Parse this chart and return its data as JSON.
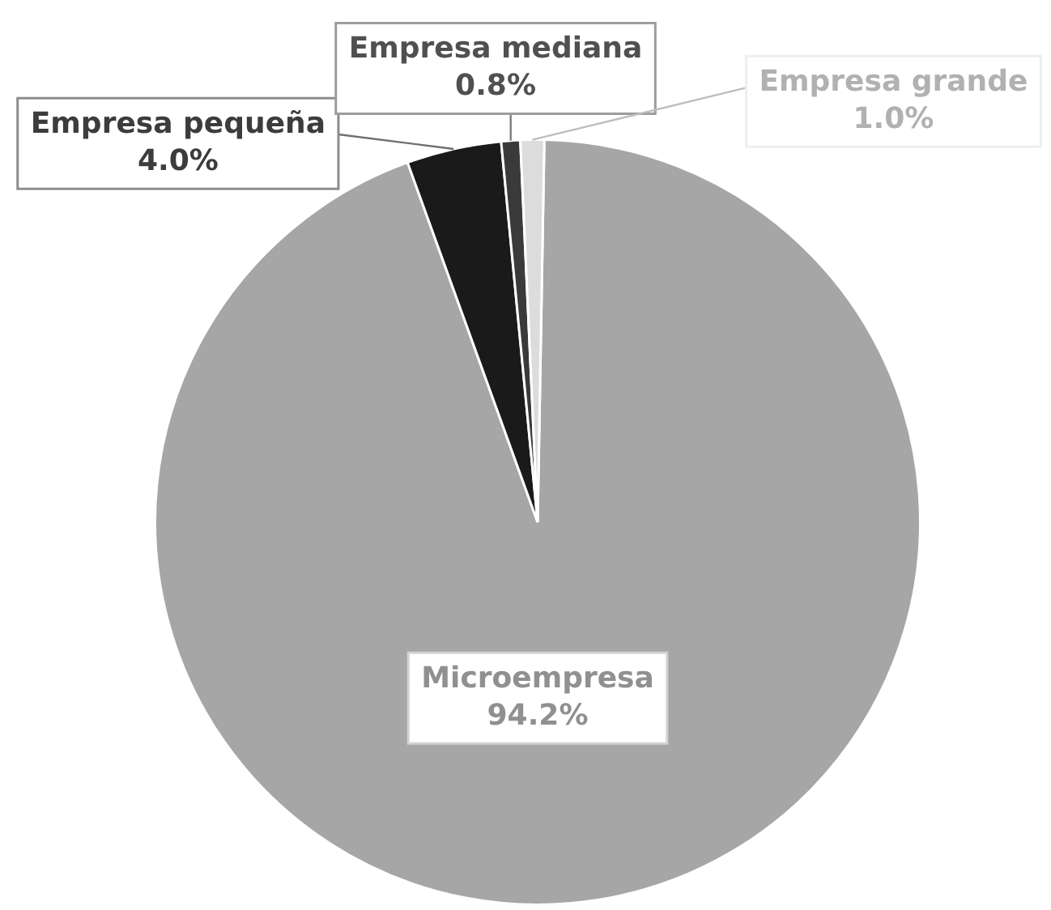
{
  "chart_data": {
    "type": "pie",
    "categories": [
      "Microempresa",
      "Empresa pequeña",
      "Empresa mediana",
      "Empresa grande"
    ],
    "values": [
      94.2,
      4.0,
      0.8,
      1.0
    ],
    "colors": [
      "#a6a6a6",
      "#1a1a1a",
      "#3a3a3a",
      "#dcdcdc"
    ],
    "value_labels": [
      "94.2%",
      "4.0%",
      "0.8%",
      "1.0%"
    ],
    "legend": false
  }
}
